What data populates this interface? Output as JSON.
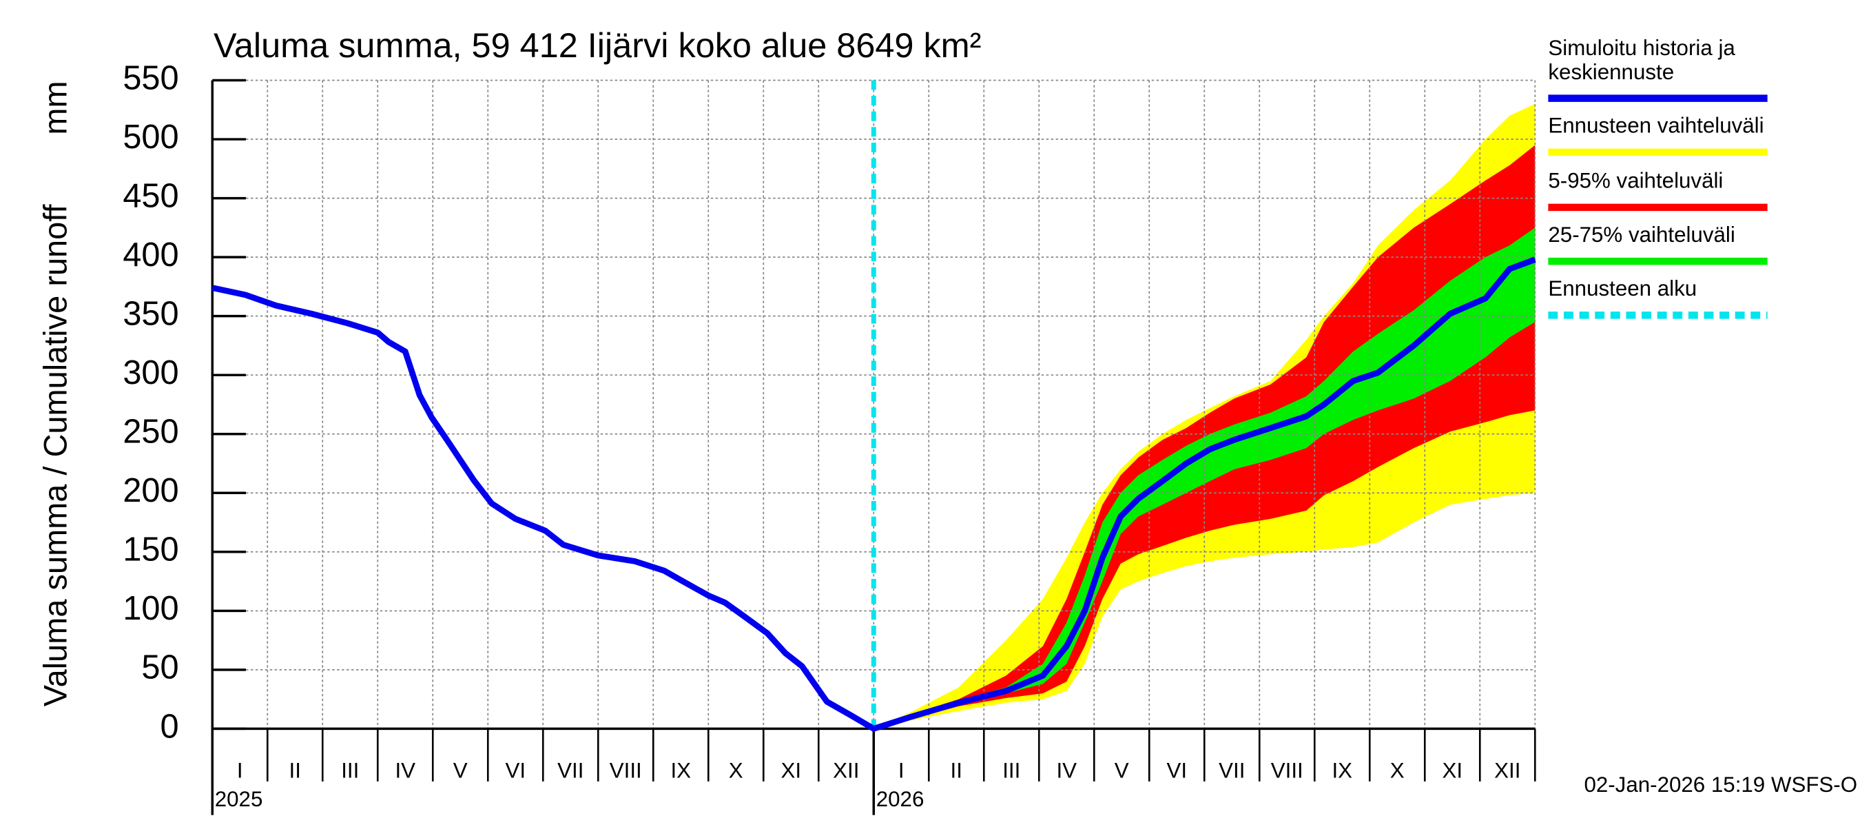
{
  "chart_data": {
    "type": "line",
    "title": "Valuma summa, 59 412 Iijärvi koko alue 8649 km²",
    "y_label": "Valuma summa / Cumulative runoff",
    "y_unit": "mm",
    "footer": "02-Jan-2026 15:19 WSFS-O",
    "ylim": [
      0,
      550
    ],
    "yticks": [
      0,
      50,
      100,
      150,
      200,
      250,
      300,
      350,
      400,
      450,
      500,
      550
    ],
    "xlim": [
      0,
      24
    ],
    "xticks": [
      0,
      1,
      2,
      3,
      4,
      5,
      6,
      7,
      8,
      9,
      10,
      11,
      12,
      13,
      14,
      15,
      16,
      17,
      18,
      19,
      20,
      21,
      22,
      23,
      24
    ],
    "categories": [
      "I",
      "II",
      "III",
      "IV",
      "V",
      "VI",
      "VII",
      "VIII",
      "IX",
      "X",
      "XI",
      "XII",
      "I",
      "II",
      "III",
      "IV",
      "V",
      "VI",
      "VII",
      "VIII",
      "IX",
      "X",
      "XI",
      "XII"
    ],
    "years": [
      {
        "value": 0,
        "label": "2025"
      },
      {
        "value": 12,
        "label": "2026"
      }
    ],
    "grid": true,
    "forecast_start": {
      "name": "Ennusteen alku",
      "color": "#00e5ee",
      "value": 12
    },
    "band_x": [
      12,
      12.67,
      13.54,
      14.4,
      15.07,
      15.5,
      15.83,
      16.15,
      16.48,
      16.8,
      17.24,
      17.67,
      18.1,
      18.54,
      19.2,
      19.85,
      20.17,
      20.7,
      21.15,
      21.8,
      22.46,
      23.1,
      23.54,
      24
    ],
    "bands": [
      {
        "name": "Ennusteen vaihteluväli",
        "color": "#ffff00",
        "lower": [
          0,
          7,
          15,
          22,
          25,
          32,
          55,
          95,
          118,
          125,
          132,
          138,
          142,
          145,
          148,
          150,
          152,
          154,
          158,
          175,
          190,
          195,
          198,
          200
        ],
        "upper": [
          0,
          14,
          35,
          75,
          110,
          145,
          175,
          200,
          220,
          235,
          250,
          262,
          272,
          282,
          295,
          330,
          350,
          378,
          410,
          440,
          465,
          500,
          520,
          530
        ]
      },
      {
        "name": "5-95% vaihteluväli",
        "color": "#ff0000",
        "lower": [
          0,
          8,
          19,
          26,
          30,
          40,
          70,
          110,
          140,
          148,
          155,
          162,
          168,
          173,
          178,
          185,
          198,
          210,
          222,
          238,
          252,
          260,
          266,
          270
        ],
        "upper": [
          0,
          12,
          25,
          45,
          70,
          110,
          150,
          190,
          215,
          230,
          245,
          255,
          268,
          280,
          292,
          315,
          345,
          375,
          400,
          425,
          445,
          465,
          478,
          495
        ]
      },
      {
        "name": "25-75% vaihteluväli",
        "color": "#00ee00",
        "lower": [
          0,
          9,
          21,
          30,
          38,
          55,
          90,
          125,
          165,
          180,
          190,
          200,
          210,
          220,
          228,
          238,
          250,
          262,
          270,
          280,
          295,
          315,
          332,
          345
        ],
        "upper": [
          0,
          11,
          24,
          35,
          55,
          90,
          130,
          175,
          200,
          215,
          228,
          240,
          250,
          258,
          268,
          282,
          295,
          320,
          335,
          355,
          380,
          400,
          410,
          425
        ]
      }
    ],
    "series": [
      {
        "name": "Simuloitu historia ja keskiennuste",
        "color": "#0000ee",
        "x": [
          0,
          0.6,
          1.15,
          1.8,
          2.45,
          3.0,
          3.2,
          3.5,
          3.76,
          3.98,
          4.3,
          4.74,
          5.07,
          5.5,
          6.04,
          6.37,
          7.0,
          7.67,
          8.2,
          8.54,
          9.0,
          9.3,
          9.63,
          10.07,
          10.4,
          10.7,
          11.15,
          11.6,
          12,
          12.67,
          13.54,
          14.4,
          15.07,
          15.5,
          15.83,
          16.15,
          16.48,
          16.8,
          17.24,
          17.67,
          18.1,
          18.54,
          19.2,
          19.85,
          20.17,
          20.7,
          21.15,
          21.8,
          22.46,
          23.1,
          23.54,
          24
        ],
        "values": [
          374,
          368,
          359,
          352,
          344,
          336,
          328,
          320,
          283,
          264,
          242,
          211,
          191,
          178,
          168,
          156,
          147,
          142,
          134,
          125,
          113,
          107,
          96,
          81,
          64,
          53,
          23,
          11,
          0,
          10,
          22,
          32,
          45,
          70,
          100,
          145,
          180,
          195,
          210,
          225,
          237,
          245,
          255,
          265,
          275,
          295,
          302,
          325,
          352,
          365,
          390,
          398
        ]
      }
    ]
  }
}
